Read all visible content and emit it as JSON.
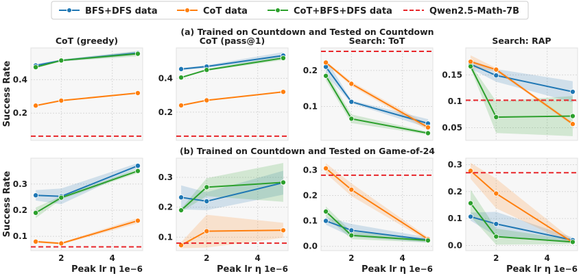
{
  "colors": {
    "blue": "#1f77b4",
    "orange": "#ff7f0e",
    "green": "#2ca02c",
    "red": "#e8262a"
  },
  "legend": {
    "position": "top",
    "entries": [
      {
        "label": "BFS+DFS data",
        "color": "#1f77b4",
        "style": "line-marker"
      },
      {
        "label": "CoT data",
        "color": "#ff7f0e",
        "style": "line-marker"
      },
      {
        "label": "CoT+BFS+DFS data",
        "color": "#2ca02c",
        "style": "line-marker"
      },
      {
        "label": "Qwen2.5-Math-7B",
        "color": "#e8262a",
        "style": "dashed"
      }
    ]
  },
  "row_titles": [
    "(a) Trained on Countdown and Tested on Countdown",
    "(b) Trained on Countdown and Tested on Game-of-24"
  ],
  "ylabel": "Success Rate",
  "xlabel": "Peak lr η",
  "x_offset_label": "1e−6",
  "chart_data": [
    {
      "type": "line",
      "row": 0,
      "col": 0,
      "title": "CoT (greedy)",
      "x": [
        1,
        2,
        5
      ],
      "xlim": [
        0.81,
        5.19
      ],
      "xticks": [
        2,
        4
      ],
      "ylim": [
        0.037,
        0.59
      ],
      "yticks": [
        0.2,
        0.4
      ],
      "grid": true,
      "series": [
        {
          "name": "BFS+DFS data",
          "color": "#1f77b4",
          "values": [
            0.485,
            0.515,
            0.56
          ],
          "ci": [
            0.008,
            0.006,
            0.012
          ]
        },
        {
          "name": "CoT data",
          "color": "#ff7f0e",
          "values": [
            0.245,
            0.275,
            0.32
          ],
          "ci": [
            0.004,
            0.004,
            0.004
          ]
        },
        {
          "name": "CoT+BFS+DFS data",
          "color": "#2ca02c",
          "values": [
            0.475,
            0.515,
            0.555
          ],
          "ci": [
            0.006,
            0.006,
            0.015
          ]
        }
      ],
      "baseline": 0.062
    },
    {
      "type": "line",
      "row": 0,
      "col": 1,
      "title": "CoT (pass@1)",
      "x": [
        1,
        2,
        5
      ],
      "xlim": [
        0.81,
        5.19
      ],
      "xticks": [
        2,
        4
      ],
      "ylim": [
        0.033,
        0.58
      ],
      "yticks": [
        0.2,
        0.4
      ],
      "grid": true,
      "series": [
        {
          "name": "BFS+DFS data",
          "color": "#1f77b4",
          "values": [
            0.455,
            0.47,
            0.535
          ],
          "ci": [
            0.006,
            0.008,
            0.02
          ]
        },
        {
          "name": "CoT data",
          "color": "#ff7f0e",
          "values": [
            0.24,
            0.27,
            0.32
          ],
          "ci": [
            0.004,
            0.004,
            0.004
          ]
        },
        {
          "name": "CoT+BFS+DFS data",
          "color": "#2ca02c",
          "values": [
            0.405,
            0.45,
            0.52
          ],
          "ci": [
            0.004,
            0.006,
            0.012
          ]
        }
      ],
      "baseline": 0.058
    },
    {
      "type": "line",
      "row": 0,
      "col": 2,
      "title": "Search: ToT",
      "x": [
        1,
        2,
        5
      ],
      "xlim": [
        0.81,
        5.19
      ],
      "xticks": [
        2,
        4
      ],
      "ylim": [
        0.006,
        0.2625
      ],
      "yticks": [
        0.1,
        0.2
      ],
      "grid": true,
      "series": [
        {
          "name": "BFS+DFS data",
          "color": "#1f77b4",
          "values": [
            0.21,
            0.113,
            0.053
          ],
          "ci": [
            0.022,
            0.004,
            0.012
          ]
        },
        {
          "name": "CoT data",
          "color": "#ff7f0e",
          "values": [
            0.222,
            0.163,
            0.042
          ],
          "ci": [
            0.004,
            0.006,
            0.008
          ]
        },
        {
          "name": "CoT+BFS+DFS data",
          "color": "#2ca02c",
          "values": [
            0.185,
            0.066,
            0.026
          ],
          "ci": [
            0.012,
            0.012,
            0.004
          ]
        }
      ],
      "baseline": 0.253
    },
    {
      "type": "line",
      "row": 0,
      "col": 3,
      "title": "Search: RAP",
      "x": [
        1,
        2,
        5
      ],
      "xlim": [
        0.81,
        5.19
      ],
      "xticks": [
        2,
        4
      ],
      "ylim": [
        0.026,
        0.201
      ],
      "yticks": [
        0.05,
        0.1,
        0.15
      ],
      "grid": true,
      "series": [
        {
          "name": "BFS+DFS data",
          "color": "#1f77b4",
          "values": [
            0.17,
            0.149,
            0.118
          ],
          "ci": [
            0.008,
            0.012,
            0.02
          ]
        },
        {
          "name": "CoT data",
          "color": "#ff7f0e",
          "values": [
            0.175,
            0.16,
            0.057
          ],
          "ci": [
            0.012,
            0.003,
            0.003
          ]
        },
        {
          "name": "CoT+BFS+DFS data",
          "color": "#2ca02c",
          "values": [
            0.166,
            0.07,
            0.072
          ],
          "ci": [
            0.004,
            0.03,
            0.038
          ]
        }
      ],
      "baseline": 0.102
    },
    {
      "type": "line",
      "row": 1,
      "col": 0,
      "title": "",
      "x": [
        1,
        2,
        5
      ],
      "xlim": [
        0.81,
        5.19
      ],
      "xticks": [
        2,
        4
      ],
      "ylim": [
        0.0455,
        0.399
      ],
      "yticks": [
        0.1,
        0.2,
        0.3
      ],
      "grid": true,
      "series": [
        {
          "name": "BFS+DFS data",
          "color": "#1f77b4",
          "values": [
            0.257,
            0.253,
            0.37
          ],
          "ci": [
            0.02,
            0.03,
            0.01
          ]
        },
        {
          "name": "CoT data",
          "color": "#ff7f0e",
          "values": [
            0.08,
            0.073,
            0.16
          ],
          "ci": [
            0.004,
            0.004,
            0.01
          ]
        },
        {
          "name": "CoT+BFS+DFS data",
          "color": "#2ca02c",
          "values": [
            0.19,
            0.248,
            0.35
          ],
          "ci": [
            0.02,
            0.006,
            0.008
          ]
        }
      ],
      "baseline": 0.06
    },
    {
      "type": "line",
      "row": 1,
      "col": 1,
      "title": "",
      "x": [
        1,
        2,
        5
      ],
      "xlim": [
        0.81,
        5.19
      ],
      "xticks": [
        2,
        4
      ],
      "ylim": [
        0.055,
        0.364
      ],
      "yticks": [
        0.1,
        0.2,
        0.3
      ],
      "grid": true,
      "series": [
        {
          "name": "BFS+DFS data",
          "color": "#1f77b4",
          "values": [
            0.233,
            0.22,
            0.282
          ],
          "ci": [
            0.04,
            0.03,
            0.04
          ]
        },
        {
          "name": "CoT data",
          "color": "#ff7f0e",
          "values": [
            0.073,
            0.12,
            0.123
          ],
          "ci": [
            0.01,
            0.055,
            0.025
          ]
        },
        {
          "name": "CoT+BFS+DFS data",
          "color": "#2ca02c",
          "values": [
            0.19,
            0.267,
            0.283
          ],
          "ci": [
            0.005,
            0.03,
            0.065
          ]
        }
      ],
      "baseline": 0.08
    },
    {
      "type": "line",
      "row": 1,
      "col": 2,
      "title": "",
      "x": [
        1,
        2,
        5
      ],
      "xlim": [
        0.81,
        5.19
      ],
      "xticks": [
        2,
        4
      ],
      "ylim": [
        -0.017,
        0.347
      ],
      "yticks": [
        0.0,
        0.1,
        0.2,
        0.3
      ],
      "grid": true,
      "series": [
        {
          "name": "BFS+DFS data",
          "color": "#1f77b4",
          "values": [
            0.1,
            0.063,
            0.025
          ],
          "ci": [
            0.015,
            0.025,
            0.01
          ]
        },
        {
          "name": "CoT data",
          "color": "#ff7f0e",
          "values": [
            0.307,
            0.223,
            0.028
          ],
          "ci": [
            0.02,
            0.025,
            0.008
          ]
        },
        {
          "name": "CoT+BFS+DFS data",
          "color": "#2ca02c",
          "values": [
            0.137,
            0.043,
            0.023
          ],
          "ci": [
            0.02,
            0.015,
            0.008
          ]
        }
      ],
      "baseline": 0.28
    },
    {
      "type": "line",
      "row": 1,
      "col": 3,
      "title": "",
      "x": [
        1,
        2,
        5
      ],
      "xlim": [
        0.81,
        5.19
      ],
      "xticks": [
        2,
        4
      ],
      "ylim": [
        -0.019,
        0.324
      ],
      "yticks": [
        0.0,
        0.1,
        0.2,
        0.3
      ],
      "grid": true,
      "series": [
        {
          "name": "BFS+DFS data",
          "color": "#1f77b4",
          "values": [
            0.107,
            0.08,
            0.02
          ],
          "ci": [
            0.015,
            0.045,
            0.01
          ]
        },
        {
          "name": "CoT data",
          "color": "#ff7f0e",
          "values": [
            0.277,
            0.193,
            0.012
          ],
          "ci": [
            0.03,
            0.055,
            0.008
          ]
        },
        {
          "name": "CoT+BFS+DFS data",
          "color": "#2ca02c",
          "values": [
            0.157,
            0.033,
            0.013
          ],
          "ci": [
            0.05,
            0.03,
            0.008
          ]
        }
      ],
      "baseline": 0.27
    }
  ]
}
